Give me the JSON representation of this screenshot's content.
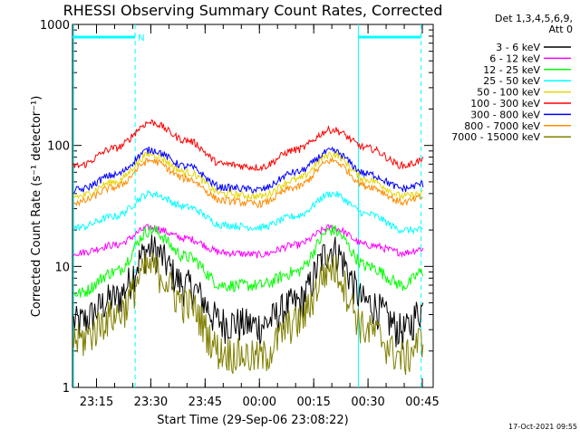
{
  "chart_data": {
    "type": "line",
    "title": "RHESSI Observing Summary Count Rates, Corrected",
    "xlabel": "Start Time (29-Sep-06 23:08:22)",
    "ylabel": "Corrected Count Rate (s⁻¹ detector⁻¹)",
    "y_scale": "log",
    "ylim": [
      1,
      1000
    ],
    "y_ticks": [
      {
        "value": 1,
        "label": "1"
      },
      {
        "value": 10,
        "label": "10"
      },
      {
        "value": 100,
        "label": "100"
      },
      {
        "value": 1000,
        "label": "1000"
      }
    ],
    "xlim": [
      "23:08:22",
      "00:48:00"
    ],
    "x_ticks": [
      {
        "value": "23:15",
        "label": "23:15"
      },
      {
        "value": "23:30",
        "label": "23:30"
      },
      {
        "value": "23:45",
        "label": "23:45"
      },
      {
        "value": "00:00",
        "label": "00:00"
      },
      {
        "value": "00:15",
        "label": "00:15"
      },
      {
        "value": "00:30",
        "label": "00:30"
      },
      {
        "value": "00:45",
        "label": "00:45"
      }
    ],
    "legend_header": [
      "Det 1,3,4,5,6,9,",
      "Att 0"
    ],
    "legend_position": "right",
    "flag_bars": [
      {
        "label": "N",
        "start": "23:08:22",
        "end": "23:25:40",
        "color": "#00ffff"
      },
      {
        "label": "",
        "start": "00:27:20",
        "end": "00:44:40",
        "color": "#00ffff"
      }
    ],
    "marker_lines": [
      {
        "x": "23:08:40",
        "style": "solid",
        "color": "#00ffff"
      },
      {
        "x": "23:25:40",
        "style": "dashed",
        "color": "#00ffff"
      },
      {
        "x": "00:27:20",
        "style": "solid",
        "color": "#00ffff"
      },
      {
        "x": "00:44:40",
        "style": "dashed",
        "color": "#00ffff"
      }
    ],
    "x": [
      "23:10",
      "23:20",
      "23:30",
      "23:40",
      "23:50",
      "00:00",
      "00:10",
      "00:20",
      "00:30",
      "00:40",
      "00:45"
    ],
    "series": [
      {
        "name": "3 - 6 keV",
        "color": "#000000",
        "values": [
          3.5,
          5.5,
          14,
          7,
          3.5,
          3.3,
          5,
          14,
          5,
          3,
          4.5
        ]
      },
      {
        "name": "6 - 12 keV",
        "color": "#ff00ff",
        "values": [
          13,
          15,
          21,
          17,
          13,
          12.5,
          15,
          21,
          15,
          13,
          14
        ]
      },
      {
        "name": "12 - 25 keV",
        "color": "#00ff00",
        "values": [
          6,
          9,
          20,
          12,
          7,
          7,
          9,
          20,
          10,
          7,
          9
        ]
      },
      {
        "name": "25 - 50 keV",
        "color": "#00ffff",
        "values": [
          21,
          26,
          40,
          31,
          22,
          21,
          26,
          40,
          27,
          20,
          20
        ]
      },
      {
        "name": "50 - 100 keV",
        "color": "#e6d600",
        "values": [
          38,
          50,
          85,
          60,
          40,
          38,
          52,
          85,
          52,
          38,
          40
        ]
      },
      {
        "name": "100 - 300 keV",
        "color": "#ff0000",
        "values": [
          68,
          95,
          155,
          110,
          70,
          66,
          92,
          135,
          95,
          68,
          75
        ]
      },
      {
        "name": "300 - 800 keV",
        "color": "#0000ff",
        "values": [
          43,
          57,
          92,
          67,
          45,
          43,
          60,
          90,
          58,
          44,
          48
        ]
      },
      {
        "name": "800 - 7000 keV",
        "color": "#ff8c00",
        "values": [
          34,
          45,
          75,
          53,
          35,
          33,
          45,
          75,
          46,
          34,
          37
        ]
      },
      {
        "name": "7000 - 15000 keV",
        "color": "#808000",
        "values": [
          2.5,
          4,
          10,
          5,
          2,
          1.8,
          3.5,
          10,
          3,
          1.8,
          2.5
        ]
      }
    ]
  },
  "footer": {
    "timestamp": "17-Oct-2021 09:55"
  }
}
